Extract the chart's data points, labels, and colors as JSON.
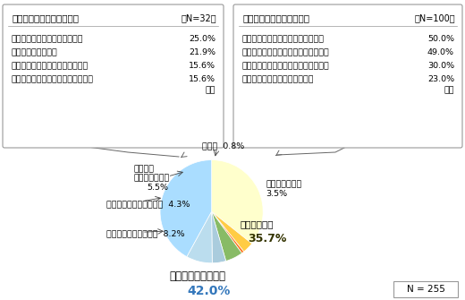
{
  "wedge_sizes": [
    35.7,
    3.5,
    0.8,
    5.5,
    4.3,
    8.2,
    42.0
  ],
  "wedge_colors": [
    "#ffffcc",
    "#ffcc44",
    "#ff7722",
    "#88bb66",
    "#aaccdd",
    "#bbddee",
    "#aaddff"
  ],
  "left_box": {
    "title": "主な不満理由（複数回答）",
    "n": "（N=32）",
    "items": [
      [
        "・商品の説明がわからなかった",
        "25.0%"
      ],
      [
        "・勧誘が強引だった",
        "21.9%"
      ],
      [
        "・商品の魅力の説明しかなかった",
        "15.6%"
      ],
      [
        "・保有株式等の乗換えを勧められた",
        "15.6%"
      ]
    ],
    "suffix": "など"
  },
  "right_box": {
    "title": "主な満足理由（複数回答）",
    "n": "（N=100）",
    "items": [
      [
        "・商品のリスクもきちんと説明した",
        "50.0%"
      ],
      [
        "・商品の魅力をわかりやすく説明した",
        "49.0%"
      ],
      [
        "・自分のニーズにあった商品を勧めた",
        "30.0%"
      ],
      [
        "・質問にきちんと答えてくれた",
        "23.0%"
      ]
    ],
    "suffix": "など"
  },
  "pie_labels": [
    "まあ満足した\n35.7%",
    "とても満足した\n3.5%",
    "無回答 0.8%",
    "販売員と\n接触していない\n5.5%",
    "まったく満足しなかった  4.3%",
    "あまり満足しなかった  8.2%",
    "どちらともいえない\n42.0%"
  ],
  "n_label": "N = 255",
  "bg_color": "#ffffff",
  "box_edge_color": "#999999",
  "line_color": "#666666"
}
